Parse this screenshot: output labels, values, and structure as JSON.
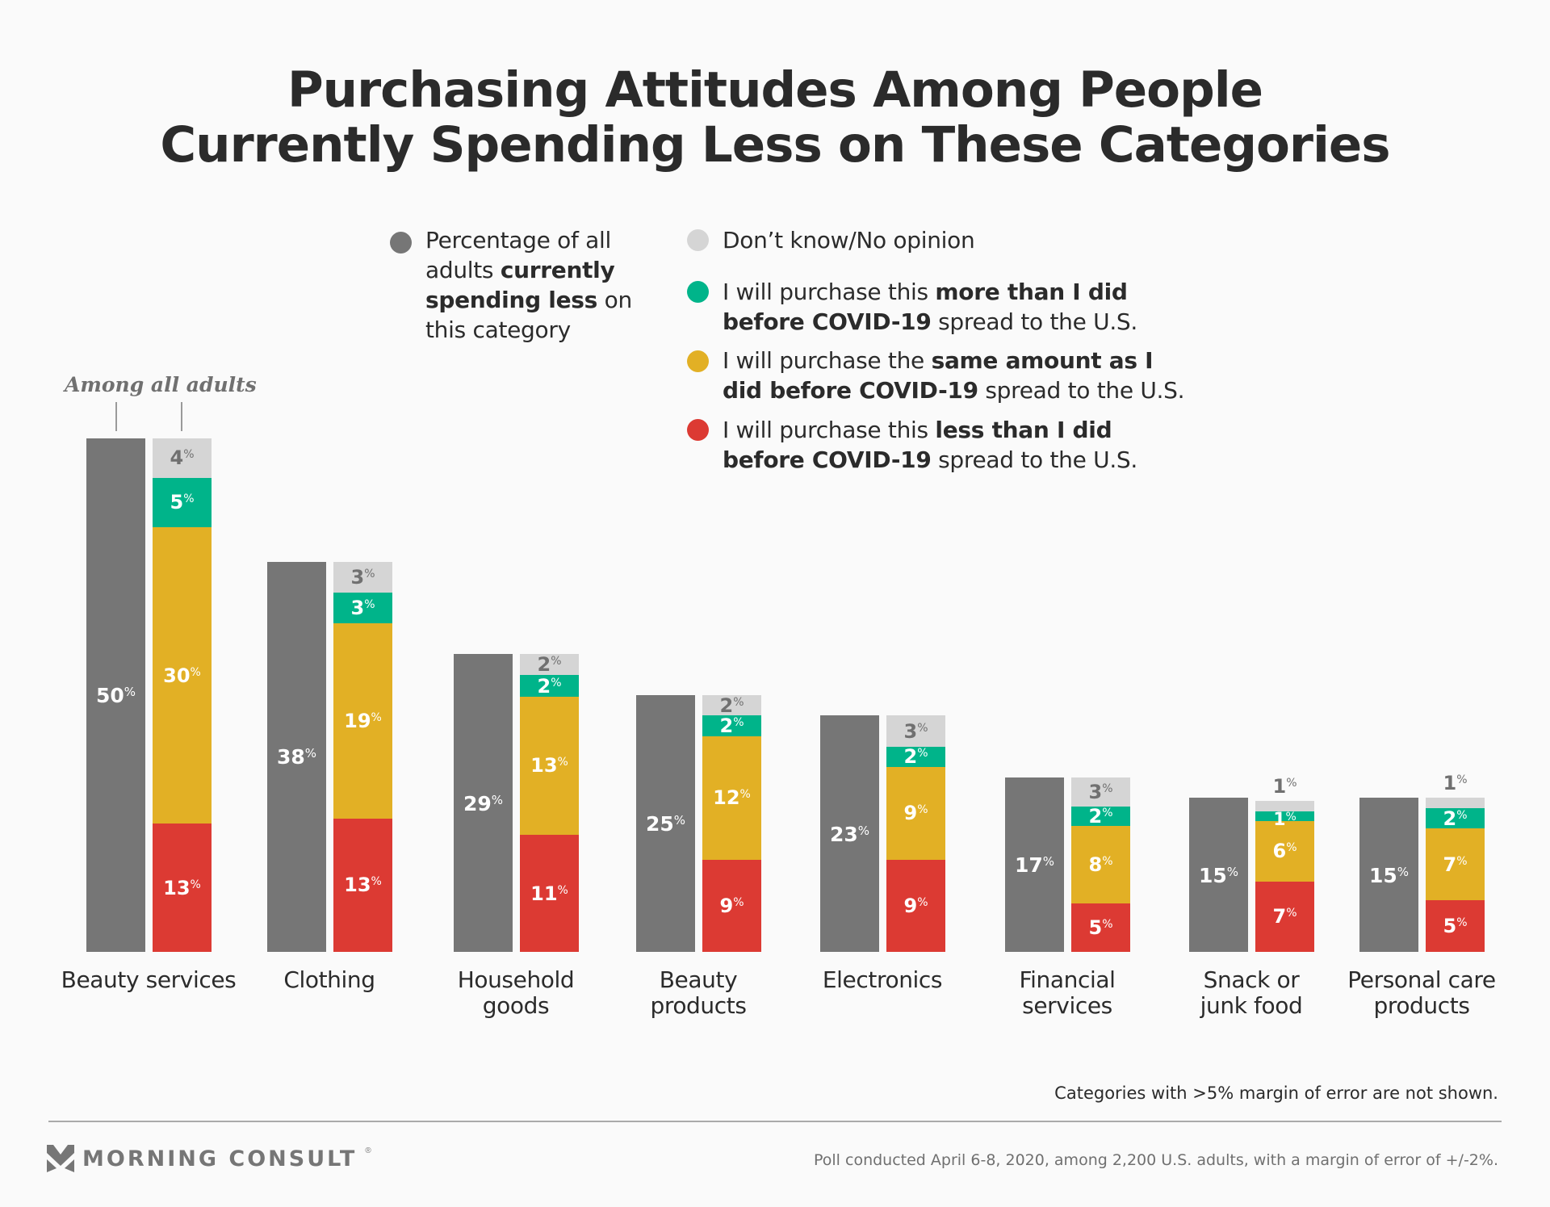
{
  "title_lines": [
    "Purchasing Attitudes Among People",
    "Currently Spending Less on These Categories"
  ],
  "legend": {
    "total": {
      "color": "#767676",
      "parts": [
        {
          "text": "Percentage of all",
          "bold": false,
          "br": true
        },
        {
          "text": "adults ",
          "bold": false
        },
        {
          "text": "currently",
          "bold": true,
          "br": true
        },
        {
          "text": "spending less",
          "bold": true
        },
        {
          "text": " on",
          "bold": false,
          "br": true
        },
        {
          "text": "this category",
          "bold": false
        }
      ]
    },
    "dont_know": {
      "color": "#d5d5d5",
      "parts": [
        {
          "text": "Don’t know/No opinion",
          "bold": false
        }
      ]
    },
    "more": {
      "color": "#00b48a",
      "parts": [
        {
          "text": "I will purchase this ",
          "bold": false
        },
        {
          "text": "more than I did",
          "bold": true,
          "br": true
        },
        {
          "text": "before COVID-19",
          "bold": true
        },
        {
          "text": " spread to the U.S.",
          "bold": false
        }
      ]
    },
    "same": {
      "color": "#e2b025",
      "parts": [
        {
          "text": "I will purchase the ",
          "bold": false
        },
        {
          "text": "same amount as I",
          "bold": true,
          "br": true
        },
        {
          "text": "did before COVID-19",
          "bold": true
        },
        {
          "text": " spread to the U.S.",
          "bold": false
        }
      ]
    },
    "less": {
      "color": "#dc3a33",
      "parts": [
        {
          "text": "I will purchase this ",
          "bold": false
        },
        {
          "text": "less than I did",
          "bold": true,
          "br": true
        },
        {
          "text": "before COVID-19",
          "bold": true
        },
        {
          "text": " spread to the U.S.",
          "bold": false
        }
      ]
    }
  },
  "annotation": "Among all adults",
  "chart_data": {
    "type": "bar",
    "title": "Purchasing Attitudes Among People Currently Spending Less on These Categories",
    "xlabel": "",
    "ylabel": "",
    "unit": "%",
    "grid": false,
    "legend_position": "top-center",
    "categories": [
      [
        "Beauty services"
      ],
      [
        "Clothing"
      ],
      [
        "Household",
        "goods"
      ],
      [
        "Beauty",
        "products"
      ],
      [
        "Electronics"
      ],
      [
        "Financial",
        "services"
      ],
      [
        "Snack or",
        "junk food"
      ],
      [
        "Personal care",
        "products"
      ]
    ],
    "series": [
      {
        "name": "Percentage of all adults currently spending less on this category",
        "key": "total",
        "color": "#767676",
        "values": [
          50,
          38,
          29,
          25,
          23,
          17,
          15,
          15
        ]
      },
      {
        "name": "I will purchase this less than I did before COVID-19 spread to the U.S.",
        "key": "less",
        "color": "#dc3a33",
        "stack": "attitude",
        "values": [
          13,
          13,
          11,
          9,
          9,
          5,
          7,
          5
        ]
      },
      {
        "name": "I will purchase the same amount as I did before COVID-19 spread to the U.S.",
        "key": "same",
        "color": "#e2b025",
        "stack": "attitude",
        "values": [
          30,
          19,
          13,
          12,
          9,
          8,
          6,
          7
        ]
      },
      {
        "name": "I will purchase this more than I did before COVID-19 spread to the U.S.",
        "key": "more",
        "color": "#00b48a",
        "stack": "attitude",
        "values": [
          5,
          3,
          2,
          2,
          2,
          2,
          1,
          2
        ]
      },
      {
        "name": "Don’t know/No opinion",
        "key": "dont_know",
        "color": "#d5d5d5",
        "stack": "attitude",
        "values": [
          4,
          3,
          2,
          2,
          3,
          3,
          1,
          1
        ]
      }
    ],
    "label_colors": {
      "total": "#ffffff",
      "less": "#ffffff",
      "same": "#ffffff",
      "more": "#ffffff",
      "dont_know": "#707070"
    },
    "ylim": [
      0,
      50
    ]
  },
  "footer": {
    "note": "Categories with >5% margin of error are not shown.",
    "brand": "MORNING CONSULT",
    "brand_mark": "®",
    "source": "Poll conducted April 6-8, 2020, among 2,200 U.S. adults, with a margin of error of +/-2%."
  }
}
